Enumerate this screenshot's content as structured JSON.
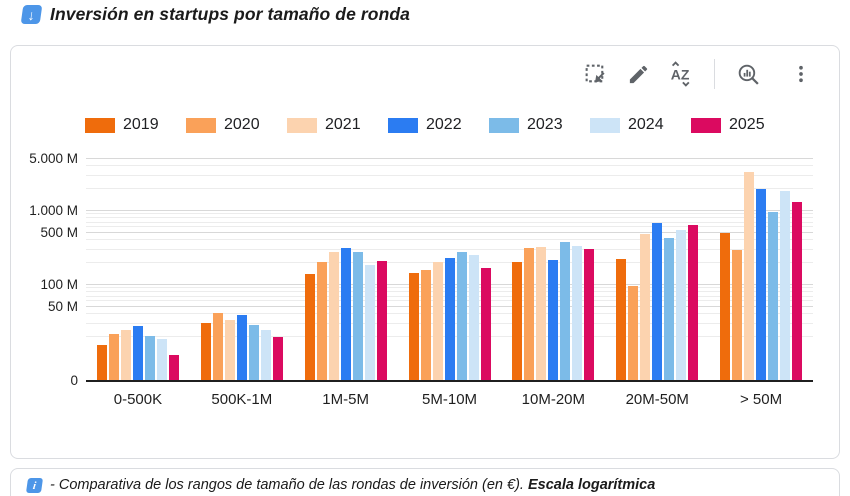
{
  "page": {
    "title": "Inversión en startups por tamaño de ronda",
    "title_icon": "blue-down-arrow-emoji"
  },
  "toolbar": {
    "icons": [
      "select-range",
      "edit-pencil",
      "sort-az",
      "explore-chart",
      "more-options"
    ]
  },
  "footer": {
    "icon": "info-emoji",
    "text": "- Comparativa de los rangos de tamaño de las rondas de inversión (en €).",
    "bold_text": "Escala logarítmica"
  },
  "chart_data": {
    "type": "bar",
    "title": "Inversión en startups por tamaño de ronda",
    "y_scale": "log",
    "unit": "M €",
    "grid": true,
    "legend_position": "top",
    "categories": [
      "0-500K",
      "500K-1M",
      "1M-5M",
      "5M-10M",
      "10M-20M",
      "20M-50M",
      "> 50M"
    ],
    "series": [
      {
        "name": "2019",
        "color": "#EF6C0C",
        "values": [
          15,
          30,
          135,
          140,
          198,
          215,
          490
        ]
      },
      {
        "name": "2020",
        "color": "#FAA159",
        "values": [
          21,
          41,
          200,
          155,
          305,
          93,
          293
        ]
      },
      {
        "name": "2021",
        "color": "#FCD3AF",
        "values": [
          24,
          33,
          270,
          200,
          320,
          470,
          3300
        ]
      },
      {
        "name": "2022",
        "color": "#2B7CF2",
        "values": [
          27,
          38,
          305,
          227,
          210,
          660,
          1925
        ]
      },
      {
        "name": "2023",
        "color": "#7CBBE8",
        "values": [
          20,
          28,
          270,
          275,
          375,
          415,
          950
        ]
      },
      {
        "name": "2024",
        "color": "#CDE4F7",
        "values": [
          18,
          24,
          180,
          250,
          330,
          535,
          1830
        ]
      },
      {
        "name": "2025",
        "color": "#DB0A60",
        "values": [
          11,
          19,
          207,
          165,
          300,
          635,
          1280
        ]
      }
    ],
    "y_axis": {
      "tick_labels": [
        "5.000 M",
        "1.000 M",
        "500 M",
        "100 M",
        "50 M",
        "0"
      ],
      "tick_values": [
        5000,
        1000,
        500,
        100,
        50,
        0
      ],
      "range_top": 5000
    }
  }
}
